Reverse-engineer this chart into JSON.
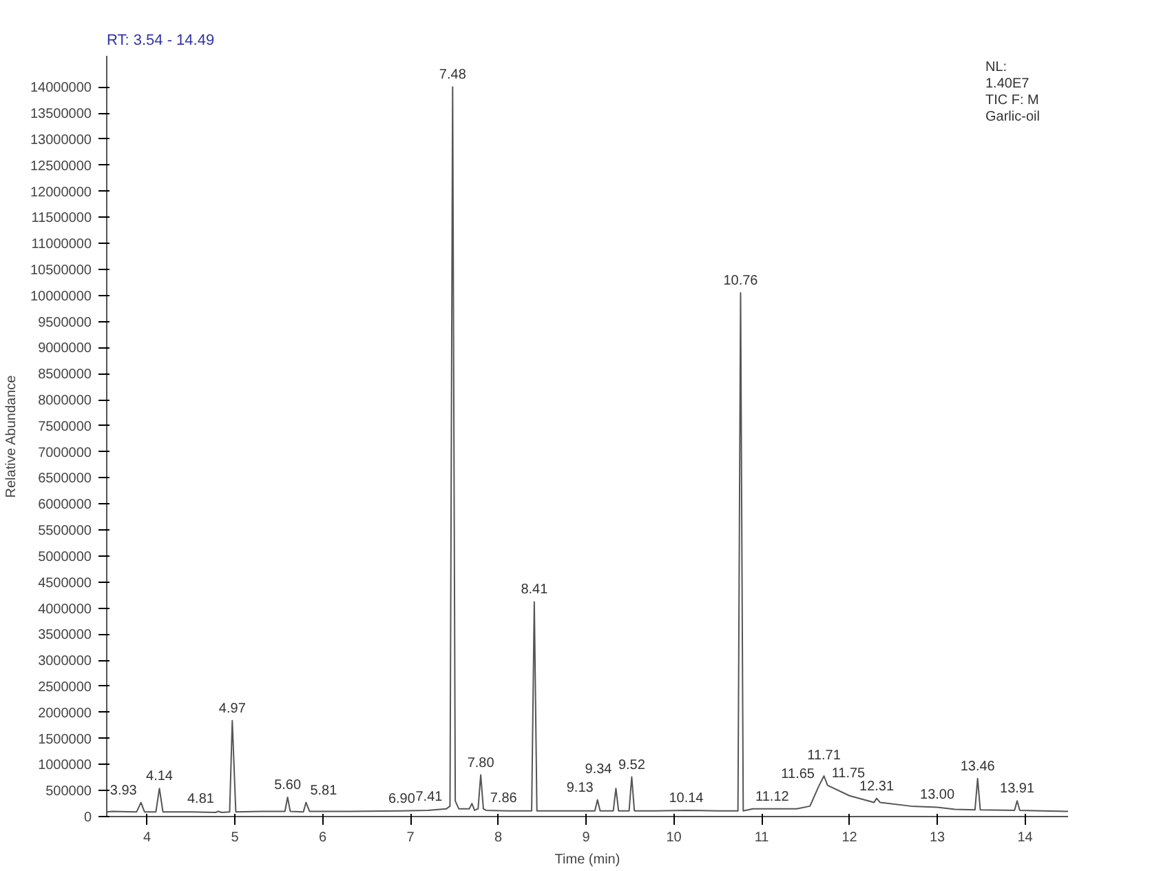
{
  "chart_data": {
    "type": "line",
    "xlabel": "Time (min)",
    "ylabel": "Relative Abundance",
    "x": [
      3.54,
      3.6,
      3.88,
      3.93,
      3.97,
      4.1,
      4.14,
      4.18,
      4.5,
      4.78,
      4.81,
      4.85,
      4.94,
      4.97,
      5.01,
      5.3,
      5.57,
      5.6,
      5.63,
      5.78,
      5.81,
      5.85,
      6.3,
      6.9,
      7.2,
      7.41,
      7.45,
      7.48,
      7.51,
      7.55,
      7.67,
      7.7,
      7.73,
      7.77,
      7.8,
      7.83,
      7.86,
      8.1,
      8.38,
      8.41,
      8.44,
      8.8,
      9.1,
      9.13,
      9.16,
      9.31,
      9.34,
      9.37,
      9.49,
      9.52,
      9.55,
      9.8,
      10.14,
      10.5,
      10.73,
      10.76,
      10.79,
      10.9,
      11.12,
      11.4,
      11.55,
      11.65,
      11.71,
      11.75,
      12.0,
      12.28,
      12.31,
      12.35,
      12.7,
      13.0,
      13.2,
      13.43,
      13.46,
      13.49,
      13.88,
      13.91,
      13.94,
      14.2,
      14.49
    ],
    "series": [
      {
        "color": "#555555",
        "values": [
          90000,
          100000,
          90000,
          270000,
          90000,
          90000,
          540000,
          90000,
          90000,
          80000,
          100000,
          80000,
          90000,
          1840000,
          90000,
          100000,
          100000,
          370000,
          100000,
          90000,
          270000,
          100000,
          100000,
          110000,
          120000,
          150000,
          200000,
          14000000,
          300000,
          150000,
          150000,
          250000,
          120000,
          150000,
          800000,
          150000,
          120000,
          110000,
          110000,
          4120000,
          110000,
          110000,
          110000,
          320000,
          110000,
          110000,
          540000,
          110000,
          110000,
          760000,
          110000,
          110000,
          120000,
          110000,
          110000,
          10050000,
          110000,
          150000,
          150000,
          150000,
          200000,
          580000,
          780000,
          600000,
          400000,
          270000,
          350000,
          270000,
          200000,
          180000,
          140000,
          130000,
          730000,
          130000,
          120000,
          300000,
          120000,
          110000,
          100000
        ]
      }
    ],
    "xlim": [
      3.54,
      14.49
    ],
    "xticks": [
      4,
      5,
      6,
      7,
      8,
      9,
      10,
      11,
      12,
      13,
      14
    ],
    "ylim": [
      0,
      14600000
    ],
    "yticks": [
      0,
      500000,
      1000000,
      1500000,
      2000000,
      2500000,
      3000000,
      3500000,
      4000000,
      4500000,
      5000000,
      5500000,
      6000000,
      6500000,
      7000000,
      7500000,
      8000000,
      8500000,
      9000000,
      9500000,
      10000000,
      10500000,
      11000000,
      11500000,
      12000000,
      12500000,
      13000000,
      13500000,
      14000000
    ],
    "grid": false,
    "annotations": [
      "RT: 3.54 - 14.49",
      "NL:",
      "1.40E7",
      "TIC F:  M",
      "Garlic-oil",
      {
        "text": "3.93",
        "x": 3.93,
        "y": 270000
      },
      {
        "text": "4.14",
        "x": 4.14,
        "y": 540000
      },
      {
        "text": "4.81",
        "x": 4.81,
        "y": 100000
      },
      {
        "text": "4.97",
        "x": 4.97,
        "y": 1840000
      },
      {
        "text": "5.60",
        "x": 5.6,
        "y": 370000
      },
      {
        "text": "5.81",
        "x": 5.81,
        "y": 270000
      },
      {
        "text": "6.90",
        "x": 6.9,
        "y": 110000
      },
      {
        "text": "7.41",
        "x": 7.41,
        "y": 150000
      },
      {
        "text": "7.48",
        "x": 7.48,
        "y": 14000000
      },
      {
        "text": "7.80",
        "x": 7.8,
        "y": 800000
      },
      {
        "text": "7.86",
        "x": 7.86,
        "y": 120000
      },
      {
        "text": "8.41",
        "x": 8.41,
        "y": 4120000
      },
      {
        "text": "9.13",
        "x": 9.13,
        "y": 320000
      },
      {
        "text": "9.34",
        "x": 9.34,
        "y": 540000
      },
      {
        "text": "9.52",
        "x": 9.52,
        "y": 760000
      },
      {
        "text": "10.14",
        "x": 10.14,
        "y": 120000
      },
      {
        "text": "10.76",
        "x": 10.76,
        "y": 10050000
      },
      {
        "text": "11.12",
        "x": 11.12,
        "y": 150000
      },
      {
        "text": "11.65",
        "x": 11.65,
        "y": 580000
      },
      {
        "text": "11.71",
        "x": 11.71,
        "y": 780000
      },
      {
        "text": "11.75",
        "x": 11.75,
        "y": 600000
      },
      {
        "text": "12.31",
        "x": 12.31,
        "y": 350000
      },
      {
        "text": "13.00",
        "x": 13.0,
        "y": 180000
      },
      {
        "text": "13.46",
        "x": 13.46,
        "y": 730000
      },
      {
        "text": "13.91",
        "x": 13.91,
        "y": 300000
      }
    ]
  }
}
